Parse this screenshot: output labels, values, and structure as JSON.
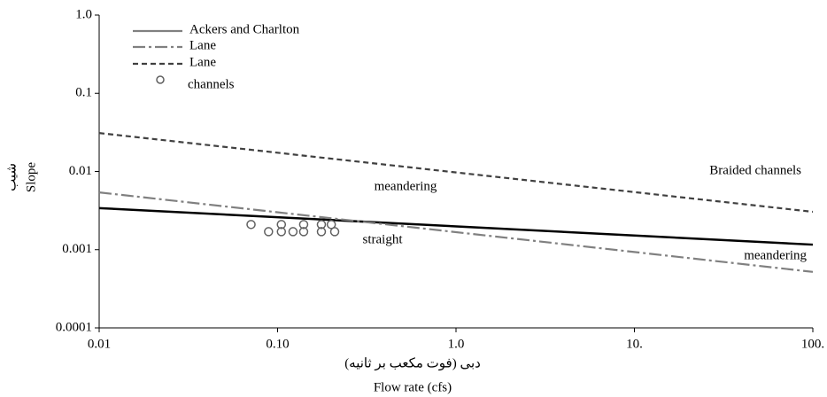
{
  "chart_data": {
    "type": "scatter",
    "xlabel": [
      "دبی (فوت مکعب بر ثانیه)",
      "Flow rate (cfs)"
    ],
    "ylabel": [
      "شیب",
      "Slope"
    ],
    "xscale": "log",
    "yscale": "log",
    "xlim": [
      0.01,
      100
    ],
    "ylim": [
      0.0001,
      1
    ],
    "xticks": [
      0.01,
      {
        "value": 0.1,
        "label": "0.10"
      },
      {
        "value": 1,
        "label": "1.0"
      },
      {
        "value": 10,
        "label": "10."
      },
      {
        "value": 100,
        "label": "100."
      }
    ],
    "yticks": [
      {
        "value": 1,
        "label": "1.0"
      },
      0.1,
      0.01,
      0.001,
      0.0001
    ],
    "grid": false,
    "legend": "upper left",
    "series": [
      {
        "name": "Ackers and Charlton",
        "style": "solid",
        "color": "#000000",
        "legend_color": "#808080",
        "x": [
          0.01,
          100
        ],
        "values": [
          0.0034,
          0.00116
        ]
      },
      {
        "name": "Lane",
        "style": "dashdot",
        "color": "#808080",
        "x": [
          0.01,
          100
        ],
        "values": [
          0.0054,
          0.00052
        ]
      },
      {
        "name": "Lane",
        "style": "dashed",
        "color": "#404040",
        "x": [
          0.01,
          100
        ],
        "values": [
          0.031,
          0.00305
        ]
      },
      {
        "name": "channels",
        "style": "markers",
        "color": "#606060",
        "x": [
          0.071,
          0.089,
          0.105,
          0.105,
          0.122,
          0.14,
          0.14,
          0.176,
          0.176,
          0.2,
          0.209
        ],
        "values": [
          0.0021,
          0.0017,
          0.0021,
          0.0017,
          0.0017,
          0.0021,
          0.0017,
          0.0021,
          0.0017,
          0.0021,
          0.0017
        ]
      }
    ],
    "annotations": [
      "meandering",
      "straight",
      "Braided channels",
      "meandering"
    ]
  }
}
